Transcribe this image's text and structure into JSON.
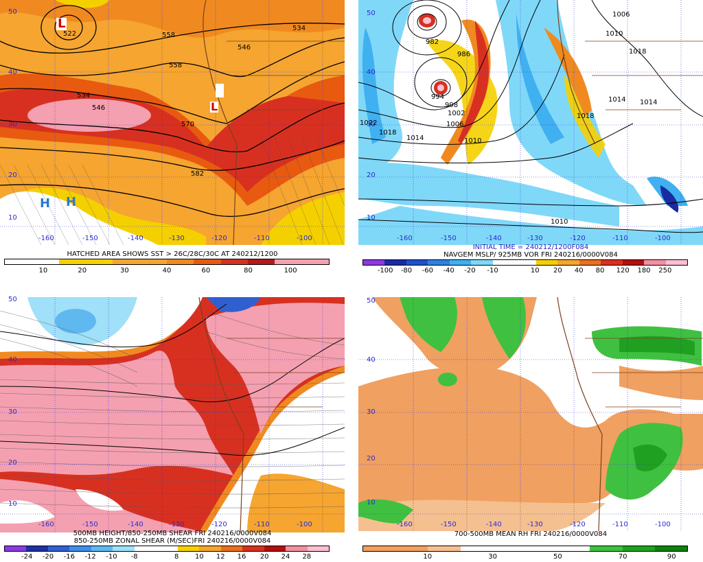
{
  "panels": [
    {
      "id": "upper-level",
      "captions": [
        "HATCHED AREA SHOWS SST > 26C/28C/30C AT 240212/1200"
      ],
      "colorbar": {
        "colors": [
          "#ffffff",
          "#ffffff",
          "#f5d000",
          "#f5d000",
          "#f5a530",
          "#f5a530",
          "#f08a20",
          "#e85a10",
          "#d83020",
          "#b81818",
          "#f4a0b0",
          "#f4a0b0"
        ],
        "labels": [
          "10",
          "20",
          "30",
          "40",
          "60",
          "80",
          "100"
        ]
      },
      "lat_labels": [
        "50",
        "40",
        "30",
        "20",
        "10"
      ],
      "lon_labels": [
        "-160",
        "-150",
        "-140",
        "-130",
        "-120",
        "-110",
        "-100"
      ],
      "contour_labels": [
        "522",
        "558",
        "534",
        "546",
        "558",
        "534",
        "546",
        "570",
        "582"
      ],
      "highs": [
        "H",
        "H"
      ],
      "lows": [
        "L",
        "L"
      ]
    },
    {
      "id": "mslp-vorticity",
      "captions": [
        "INITIAL TIME = 240212/1200F084",
        "NAVGEM MSLP/ 925MB VOR FRI 240216/0000V084"
      ],
      "colorbar": {
        "colors": [
          "#8a3ae0",
          "#1a2aa0",
          "#2050c8",
          "#3080e0",
          "#40b0f0",
          "#80d8f8",
          "#ffffff",
          "#ffffff",
          "#f5d000",
          "#f5a530",
          "#e87020",
          "#d83020",
          "#b01010",
          "#f090a0",
          "#f8c0d0"
        ],
        "labels": [
          "-100",
          "-80",
          "-60",
          "-40",
          "-20",
          "-10",
          "10",
          "20",
          "40",
          "80",
          "120",
          "180",
          "250"
        ]
      },
      "lat_labels": [
        "50",
        "40",
        "30",
        "20",
        "10"
      ],
      "lon_labels": [
        "-160",
        "-150",
        "-140",
        "-130",
        "-120",
        "-110",
        "-100"
      ],
      "contour_labels": [
        "982",
        "986",
        "994",
        "998",
        "1002",
        "1006",
        "1010",
        "1014",
        "1018",
        "1022",
        "1010",
        "1006",
        "1010",
        "1014",
        "1014",
        "1018",
        "1018"
      ]
    },
    {
      "id": "shear",
      "captions": [
        "500MB HEIGHT/850-250MB SHEAR FRI 240216/0000V084",
        "850-250MB ZONAL SHEAR (M/SEC)FRI 240216/0000V084"
      ],
      "colorbar": {
        "colors": [
          "#8a3ae0",
          "#2030a0",
          "#3060d0",
          "#4090e8",
          "#60b8f0",
          "#a0e0f8",
          "#ffffff",
          "#ffffff",
          "#f5d000",
          "#f5a530",
          "#e87020",
          "#d83020",
          "#b01010",
          "#f090a0",
          "#f8c0d0"
        ],
        "labels": [
          "-24",
          "-20",
          "-16",
          "-12",
          "-10",
          "-8",
          "8",
          "10",
          "12",
          "16",
          "20",
          "24",
          "28"
        ]
      },
      "lat_labels": [
        "50",
        "40",
        "30",
        "20",
        "10"
      ],
      "lon_labels": [
        "-160",
        "-150",
        "-140",
        "-130",
        "-120",
        "-110",
        "-100"
      ]
    },
    {
      "id": "mean-rh",
      "captions": [
        "700-500MB MEAN RH FRI 240216/0000V084"
      ],
      "colorbar": {
        "colors": [
          "#f0a060",
          "#f0a060",
          "#f5c090",
          "#ffffff",
          "#ffffff",
          "#ffffff",
          "#ffffff",
          "#40c040",
          "#20a020",
          "#108010"
        ],
        "labels": [
          "10",
          "30",
          "50",
          "70",
          "90"
        ]
      },
      "lat_labels": [
        "50",
        "40",
        "30",
        "20",
        "10"
      ],
      "lon_labels": [
        "-160",
        "-150",
        "-140",
        "-130",
        "-120",
        "-110",
        "-100"
      ]
    }
  ]
}
